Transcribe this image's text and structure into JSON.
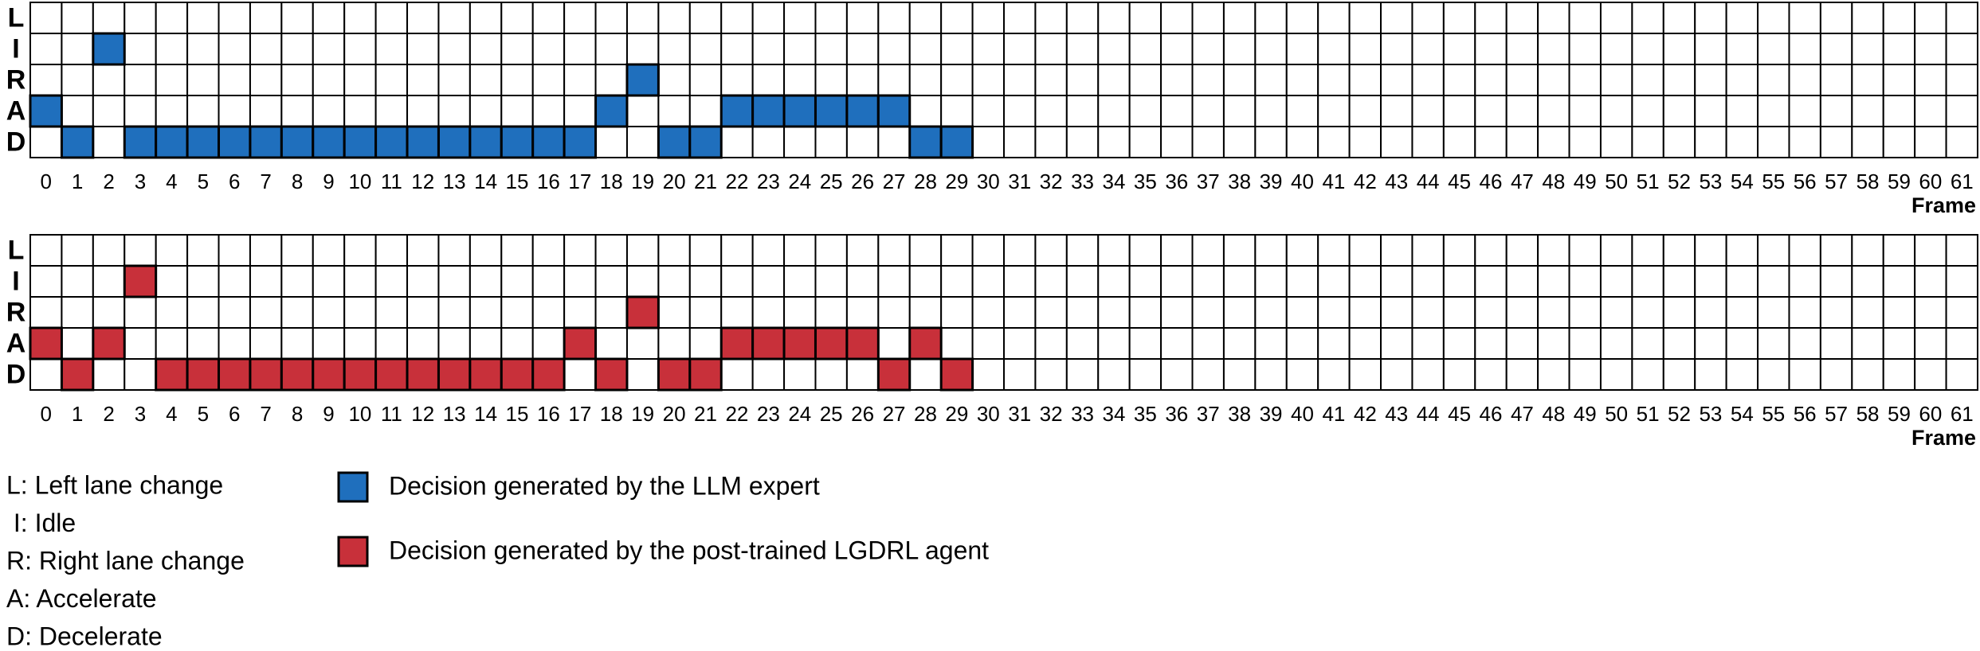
{
  "chart_data": [
    {
      "type": "grid",
      "rows": [
        "L",
        "I",
        "R",
        "A",
        "D"
      ],
      "xlabel": "Frame",
      "categories": [
        0,
        1,
        2,
        3,
        4,
        5,
        6,
        7,
        8,
        9,
        10,
        11,
        12,
        13,
        14,
        15,
        16,
        17,
        18,
        19,
        20,
        21,
        22,
        23,
        24,
        25,
        26,
        27,
        28,
        29,
        30,
        31,
        32,
        33,
        34,
        35,
        36,
        37,
        38,
        39,
        40,
        41,
        42,
        43,
        44,
        45,
        46,
        47,
        48,
        49,
        50,
        51,
        52,
        53,
        54,
        55,
        56,
        57,
        58,
        59,
        60,
        61
      ],
      "series": [
        {
          "name": "Decision generated by the LLM expert",
          "color": "#1f6fbd",
          "values": [
            "A",
            "D",
            "I",
            "D",
            "D",
            "D",
            "D",
            "D",
            "D",
            "D",
            "D",
            "D",
            "D",
            "D",
            "D",
            "D",
            "D",
            "D",
            "A",
            "R",
            "D",
            "D",
            "A",
            "A",
            "A",
            "A",
            "A",
            "A",
            "D",
            "D",
            null,
            null,
            null,
            null,
            null,
            null,
            null,
            null,
            null,
            null,
            null,
            null,
            null,
            null,
            null,
            null,
            null,
            null,
            null,
            null,
            null,
            null,
            null,
            null,
            null,
            null,
            null,
            null,
            null,
            null,
            null,
            null
          ]
        }
      ]
    },
    {
      "type": "grid",
      "rows": [
        "L",
        "I",
        "R",
        "A",
        "D"
      ],
      "xlabel": "Frame",
      "categories": [
        0,
        1,
        2,
        3,
        4,
        5,
        6,
        7,
        8,
        9,
        10,
        11,
        12,
        13,
        14,
        15,
        16,
        17,
        18,
        19,
        20,
        21,
        22,
        23,
        24,
        25,
        26,
        27,
        28,
        29,
        30,
        31,
        32,
        33,
        34,
        35,
        36,
        37,
        38,
        39,
        40,
        41,
        42,
        43,
        44,
        45,
        46,
        47,
        48,
        49,
        50,
        51,
        52,
        53,
        54,
        55,
        56,
        57,
        58,
        59,
        60,
        61
      ],
      "series": [
        {
          "name": "Decision generated by the post-trained LGDRL agent",
          "color": "#c8303a",
          "values": [
            "A",
            "D",
            "A",
            "I",
            "D",
            "D",
            "D",
            "D",
            "D",
            "D",
            "D",
            "D",
            "D",
            "D",
            "D",
            "D",
            "D",
            "A",
            "D",
            "R",
            "D",
            "D",
            "A",
            "A",
            "A",
            "A",
            "A",
            "D",
            "A",
            "D",
            null,
            null,
            null,
            null,
            null,
            null,
            null,
            null,
            null,
            null,
            null,
            null,
            null,
            null,
            null,
            null,
            null,
            null,
            null,
            null,
            null,
            null,
            null,
            null,
            null,
            null,
            null,
            null,
            null,
            null,
            null,
            null
          ]
        }
      ]
    }
  ],
  "key": [
    "L: Left lane change",
    " I: Idle",
    "R: Right lane change",
    "A: Accelerate",
    "D: Decelerate"
  ]
}
